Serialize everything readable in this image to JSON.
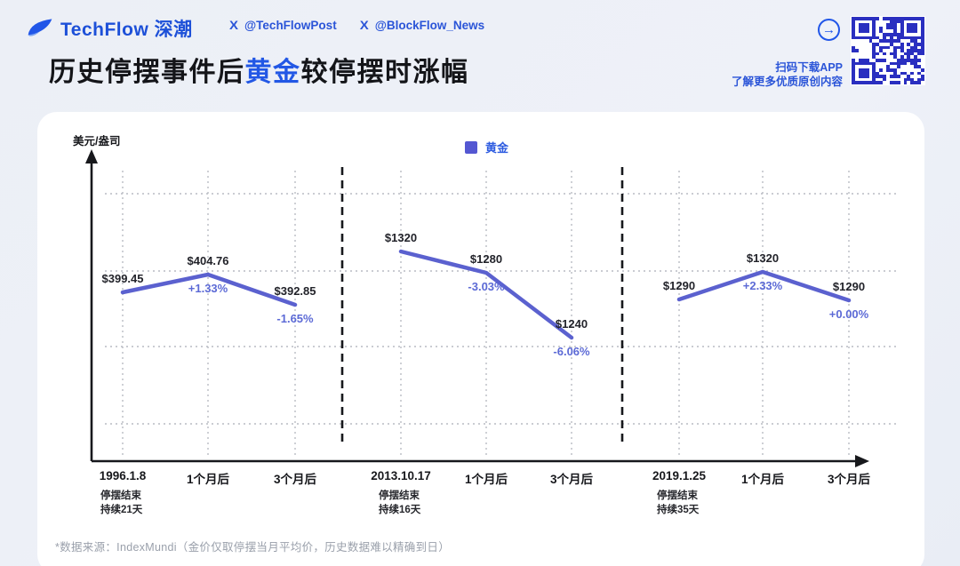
{
  "header": {
    "brand": "TechFlow 深潮",
    "handles": [
      {
        "label": "@TechFlowPost"
      },
      {
        "label": "@BlockFlow_News"
      }
    ],
    "arrow_glyph": "→",
    "qr_caption_line1": "扫码下载APP",
    "qr_caption_line2": "了解更多优质原创内容"
  },
  "title": {
    "prefix": "历史停摆事件后",
    "highlight": "黄金",
    "suffix": "较停摆时涨幅"
  },
  "chart_data": {
    "type": "line",
    "title": "历史停摆事件后黄金较停摆时涨幅",
    "ylabel": "美元/盎司",
    "xlabel": "",
    "grid": true,
    "legend_position": "top-center",
    "legend": [
      {
        "name": "黄金",
        "color": "#5457d2"
      }
    ],
    "series_color": "#5b61cf",
    "segments": [
      {
        "event_date": "1996.1.8",
        "note_line1": "停摆结束",
        "note_line2": "持续21天",
        "x_labels": [
          "1996.1.8",
          "1个月后",
          "3个月后"
        ],
        "points": [
          {
            "price": 399.45,
            "label": "$399.45",
            "pct": null
          },
          {
            "price": 404.76,
            "label": "$404.76",
            "pct": "+1.33%"
          },
          {
            "price": 392.85,
            "label": "$392.85",
            "pct": "-1.65%"
          }
        ]
      },
      {
        "event_date": "2013.10.17",
        "note_line1": "停摆结束",
        "note_line2": "持续16天",
        "x_labels": [
          "2013.10.17",
          "1个月后",
          "3个月后"
        ],
        "points": [
          {
            "price": 1320,
            "label": "$1320",
            "pct": null
          },
          {
            "price": 1280,
            "label": "$1280",
            "pct": "-3.03%"
          },
          {
            "price": 1240,
            "label": "$1240",
            "pct": "-6.06%"
          }
        ]
      },
      {
        "event_date": "2019.1.25",
        "note_line1": "停摆结束",
        "note_line2": "持续35天",
        "x_labels": [
          "2019.1.25",
          "1个月后",
          "3个月后"
        ],
        "points": [
          {
            "price": 1290,
            "label": "$1290",
            "pct": null
          },
          {
            "price": 1320,
            "label": "$1320",
            "pct": "+2.33%"
          },
          {
            "price": 1290,
            "label": "$1290",
            "pct": "+0.00%"
          }
        ]
      }
    ]
  },
  "footer": {
    "source_note": "*数据来源：IndexMundi（金价仅取停摆当月平均价，历史数据难以精确到日）"
  }
}
